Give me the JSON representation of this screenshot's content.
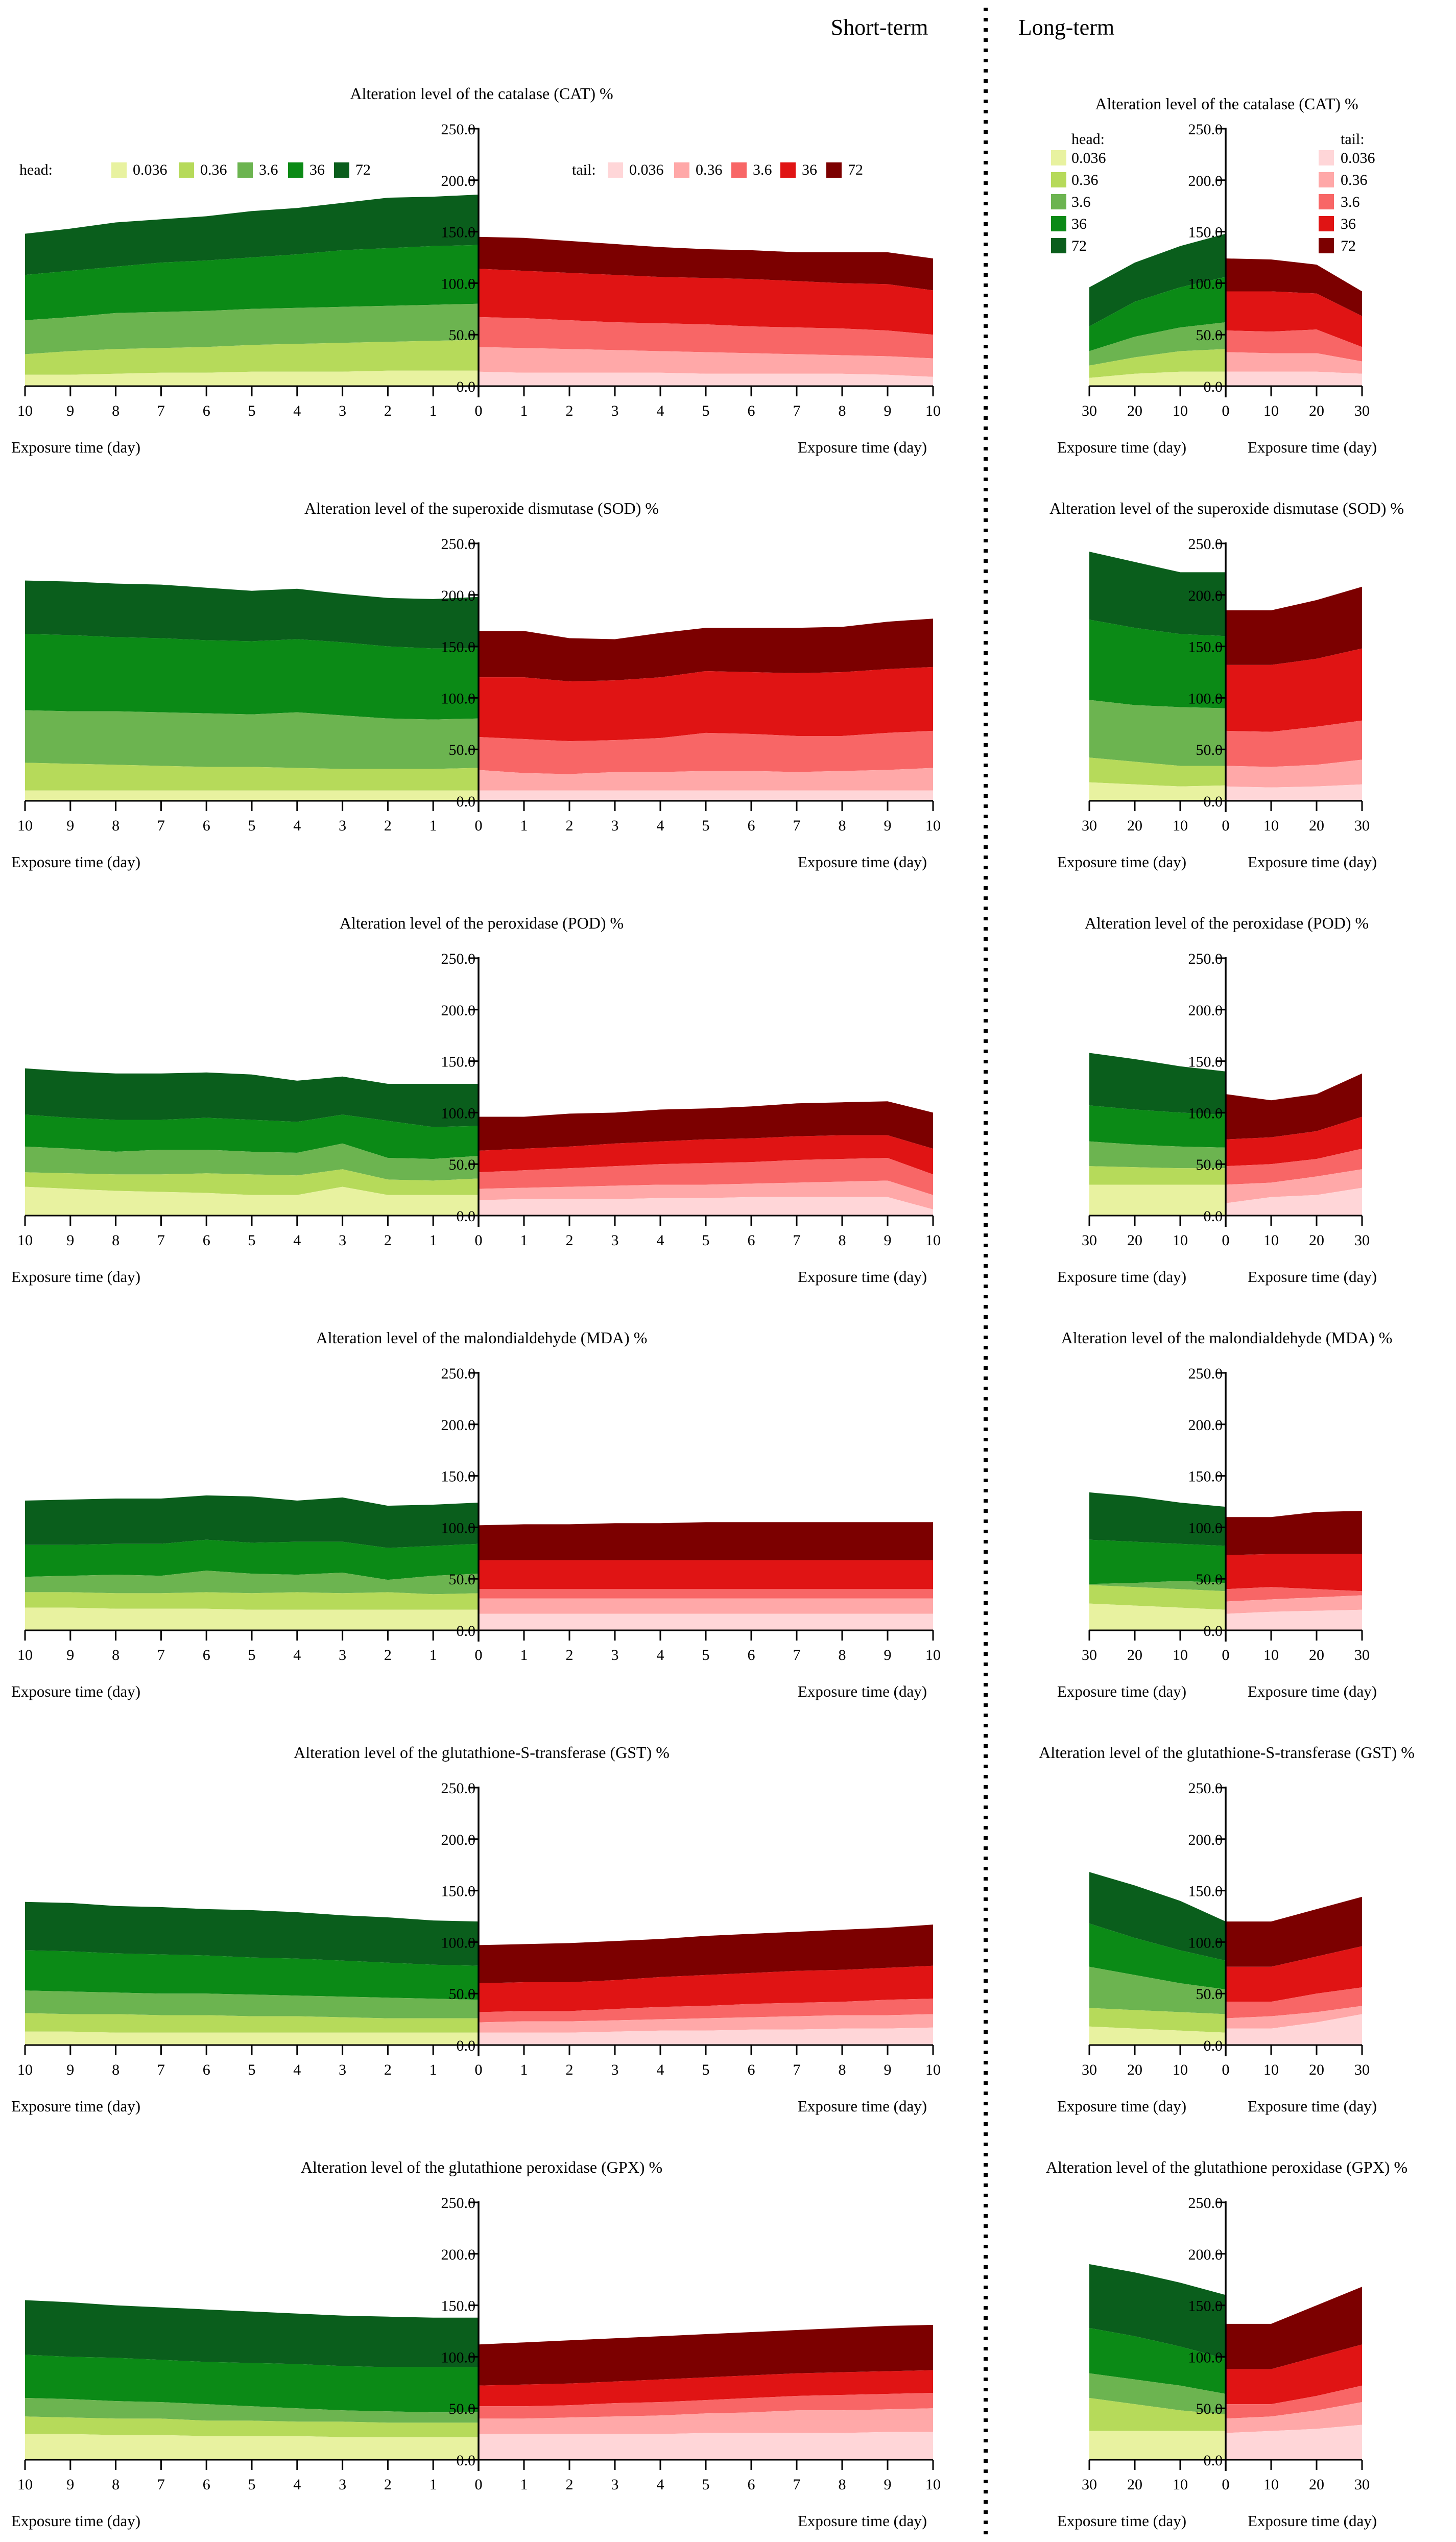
{
  "headings": {
    "short_term": "Short-term",
    "long_term": "Long-term"
  },
  "colors": {
    "head": [
      "#e8f2a0",
      "#b6da5a",
      "#6cb450",
      "#0b8a16",
      "#0a5e1c"
    ],
    "tail": [
      "#ffd6d8",
      "#ffa8a8",
      "#f86666",
      "#e01414",
      "#7c0000"
    ]
  },
  "legend": {
    "head_title": "head:",
    "tail_title": "tail:",
    "levels": [
      "0.036",
      "0.36",
      "3.6",
      "36",
      "72"
    ]
  },
  "common": {
    "y_ticks": [
      "0.0",
      "50.0",
      "100.0",
      "150.0",
      "200.0",
      "250.0"
    ],
    "ylim": [
      0,
      250
    ],
    "xlabel": "Exposure time (day)",
    "short_days": [
      0,
      1,
      2,
      3,
      4,
      5,
      6,
      7,
      8,
      9,
      10
    ],
    "long_days": [
      0,
      10,
      20,
      30
    ]
  },
  "chart_data": [
    {
      "type": "area",
      "title": "Alteration level of the catalase (CAT)  %",
      "short": {
        "head": [
          [
            15,
            15,
            15,
            14,
            14,
            14,
            13,
            13,
            12,
            11,
            11
          ],
          [
            45,
            44,
            43,
            42,
            41,
            40,
            38,
            37,
            36,
            34,
            31
          ],
          [
            80,
            79,
            78,
            77,
            76,
            75,
            73,
            72,
            71,
            67,
            64
          ],
          [
            137,
            136,
            134,
            132,
            128,
            125,
            122,
            120,
            116,
            112,
            108
          ],
          [
            186,
            184,
            183,
            178,
            173,
            170,
            165,
            162,
            159,
            153,
            148
          ]
        ],
        "tail": [
          [
            14,
            13,
            13,
            13,
            13,
            12,
            12,
            12,
            12,
            11,
            9
          ],
          [
            38,
            37,
            36,
            35,
            34,
            33,
            32,
            31,
            30,
            29,
            27
          ],
          [
            67,
            66,
            64,
            62,
            61,
            60,
            58,
            57,
            56,
            54,
            50
          ],
          [
            114,
            112,
            110,
            108,
            106,
            105,
            104,
            102,
            100,
            99,
            93
          ],
          [
            145,
            144,
            141,
            138,
            135,
            133,
            132,
            130,
            130,
            130,
            124
          ]
        ]
      },
      "long": {
        "head": [
          [
            14,
            14,
            12,
            8
          ],
          [
            36,
            34,
            28,
            20
          ],
          [
            62,
            57,
            48,
            34
          ],
          [
            106,
            96,
            82,
            58
          ],
          [
            148,
            136,
            120,
            96
          ]
        ],
        "tail": [
          [
            14,
            14,
            14,
            12
          ],
          [
            33,
            32,
            32,
            24
          ],
          [
            54,
            53,
            55,
            38
          ],
          [
            92,
            92,
            90,
            68
          ],
          [
            124,
            123,
            118,
            92
          ]
        ]
      }
    },
    {
      "type": "area",
      "title": "Alteration level of the superoxide dismutase (SOD)  %",
      "short": {
        "head": [
          [
            10,
            10,
            10,
            10,
            10,
            10,
            10,
            10,
            10,
            10,
            10
          ],
          [
            32,
            31,
            31,
            31,
            32,
            33,
            33,
            34,
            35,
            36,
            37
          ],
          [
            80,
            79,
            80,
            83,
            86,
            84,
            85,
            86,
            87,
            87,
            88
          ],
          [
            148,
            148,
            150,
            154,
            157,
            155,
            156,
            158,
            159,
            161,
            162
          ],
          [
            198,
            196,
            197,
            201,
            206,
            204,
            207,
            210,
            211,
            213,
            214
          ]
        ],
        "tail": [
          [
            10,
            10,
            10,
            10,
            10,
            10,
            10,
            10,
            10,
            10,
            10
          ],
          [
            30,
            27,
            26,
            28,
            28,
            29,
            29,
            28,
            29,
            30,
            32
          ],
          [
            62,
            60,
            58,
            59,
            61,
            66,
            65,
            63,
            63,
            66,
            68
          ],
          [
            120,
            120,
            116,
            117,
            120,
            126,
            125,
            124,
            125,
            128,
            130
          ],
          [
            165,
            165,
            158,
            157,
            163,
            168,
            168,
            168,
            169,
            174,
            177
          ]
        ]
      },
      "long": {
        "head": [
          [
            15,
            14,
            16,
            18
          ],
          [
            34,
            34,
            38,
            42
          ],
          [
            90,
            91,
            93,
            98
          ],
          [
            160,
            162,
            168,
            176
          ],
          [
            222,
            222,
            232,
            242
          ]
        ],
        "tail": [
          [
            14,
            13,
            14,
            16
          ],
          [
            34,
            33,
            35,
            40
          ],
          [
            68,
            67,
            72,
            78
          ],
          [
            132,
            132,
            138,
            148
          ],
          [
            185,
            185,
            195,
            208
          ]
        ]
      }
    },
    {
      "type": "area",
      "title": "Alteration level of the peroxidase (POD)  %",
      "short": {
        "head": [
          [
            20,
            20,
            20,
            28,
            20,
            20,
            22,
            23,
            24,
            26,
            28
          ],
          [
            36,
            34,
            35,
            45,
            39,
            40,
            41,
            40,
            40,
            41,
            42
          ],
          [
            58,
            55,
            56,
            70,
            61,
            62,
            64,
            64,
            62,
            65,
            67
          ],
          [
            87,
            86,
            92,
            98,
            91,
            93,
            95,
            93,
            93,
            95,
            98
          ],
          [
            128,
            128,
            128,
            135,
            131,
            137,
            139,
            138,
            138,
            140,
            143
          ]
        ],
        "tail": [
          [
            15,
            16,
            16,
            16,
            17,
            17,
            18,
            18,
            18,
            18,
            6
          ],
          [
            26,
            27,
            28,
            29,
            30,
            30,
            31,
            32,
            33,
            34,
            20
          ],
          [
            42,
            44,
            46,
            48,
            50,
            51,
            52,
            54,
            55,
            56,
            40
          ],
          [
            63,
            65,
            67,
            70,
            72,
            74,
            75,
            77,
            78,
            78,
            65
          ],
          [
            96,
            96,
            99,
            100,
            103,
            104,
            106,
            109,
            110,
            111,
            100
          ]
        ]
      },
      "long": {
        "head": [
          [
            30,
            30,
            30,
            30
          ],
          [
            46,
            46,
            47,
            48
          ],
          [
            66,
            67,
            69,
            72
          ],
          [
            98,
            100,
            103,
            107
          ],
          [
            140,
            145,
            152,
            158
          ]
        ],
        "tail": [
          [
            12,
            18,
            20,
            27
          ],
          [
            30,
            32,
            38,
            45
          ],
          [
            48,
            50,
            55,
            65
          ],
          [
            74,
            76,
            82,
            96
          ],
          [
            118,
            112,
            118,
            138
          ]
        ]
      }
    },
    {
      "type": "area",
      "title": "Alteration level of the malondialdehyde (MDA)  %",
      "short": {
        "head": [
          [
            20,
            20,
            20,
            20,
            20,
            20,
            21,
            21,
            21,
            22,
            22
          ],
          [
            36,
            35,
            37,
            36,
            37,
            36,
            37,
            36,
            36,
            37,
            37
          ],
          [
            55,
            53,
            49,
            56,
            54,
            55,
            58,
            53,
            54,
            53,
            52
          ],
          [
            84,
            82,
            80,
            86,
            86,
            85,
            88,
            84,
            84,
            83,
            83
          ],
          [
            124,
            122,
            121,
            129,
            126,
            130,
            131,
            128,
            128,
            127,
            126
          ]
        ],
        "tail": [
          [
            16,
            16,
            16,
            16,
            16,
            16,
            16,
            16,
            16,
            16,
            16
          ],
          [
            31,
            31,
            31,
            31,
            31,
            31,
            31,
            31,
            31,
            31,
            31
          ],
          [
            40,
            40,
            40,
            40,
            40,
            40,
            40,
            40,
            40,
            40,
            40
          ],
          [
            68,
            68,
            68,
            68,
            68,
            68,
            68,
            68,
            68,
            68,
            68
          ],
          [
            102,
            103,
            103,
            104,
            104,
            105,
            105,
            105,
            105,
            105,
            105
          ]
        ]
      },
      "long": {
        "head": [
          [
            20,
            22,
            24,
            26
          ],
          [
            38,
            40,
            42,
            44
          ],
          [
            46,
            48,
            46,
            45
          ],
          [
            82,
            84,
            86,
            88
          ],
          [
            120,
            124,
            130,
            134
          ]
        ],
        "tail": [
          [
            16,
            18,
            19,
            20
          ],
          [
            28,
            30,
            32,
            34
          ],
          [
            40,
            42,
            40,
            38
          ],
          [
            73,
            74,
            74,
            74
          ],
          [
            110,
            110,
            115,
            116
          ]
        ]
      }
    },
    {
      "type": "area",
      "title": "Alteration level of the glutathione-S-transferase (GST)  %",
      "short": {
        "head": [
          [
            12,
            12,
            12,
            12,
            12,
            12,
            12,
            12,
            12,
            13,
            13
          ],
          [
            26,
            26,
            26,
            27,
            28,
            28,
            29,
            29,
            30,
            30,
            31
          ],
          [
            44,
            45,
            46,
            47,
            48,
            49,
            50,
            50,
            51,
            52,
            53
          ],
          [
            77,
            78,
            80,
            82,
            84,
            85,
            87,
            88,
            89,
            91,
            92
          ],
          [
            120,
            121,
            124,
            126,
            129,
            131,
            132,
            134,
            135,
            138,
            139
          ]
        ],
        "tail": [
          [
            12,
            12,
            12,
            13,
            14,
            14,
            15,
            15,
            16,
            16,
            17
          ],
          [
            22,
            23,
            23,
            24,
            25,
            26,
            27,
            28,
            29,
            29,
            30
          ],
          [
            32,
            33,
            33,
            35,
            37,
            38,
            40,
            41,
            42,
            44,
            45
          ],
          [
            60,
            61,
            61,
            63,
            66,
            68,
            70,
            72,
            73,
            75,
            77
          ],
          [
            97,
            98,
            99,
            101,
            103,
            106,
            108,
            110,
            112,
            114,
            117
          ]
        ]
      },
      "long": {
        "head": [
          [
            12,
            14,
            16,
            18
          ],
          [
            30,
            32,
            34,
            36
          ],
          [
            54,
            60,
            68,
            76
          ],
          [
            82,
            92,
            104,
            118
          ],
          [
            120,
            140,
            155,
            168
          ]
        ],
        "tail": [
          [
            16,
            16,
            22,
            30
          ],
          [
            26,
            28,
            32,
            38
          ],
          [
            42,
            42,
            50,
            56
          ],
          [
            76,
            76,
            86,
            96
          ],
          [
            120,
            120,
            132,
            144
          ]
        ]
      }
    },
    {
      "type": "area",
      "title": "Alteration level of the glutathione peroxidase (GPX)  %",
      "short": {
        "head": [
          [
            22,
            22,
            22,
            22,
            23,
            23,
            23,
            24,
            24,
            25,
            25
          ],
          [
            36,
            36,
            36,
            37,
            37,
            38,
            38,
            40,
            40,
            41,
            42
          ],
          [
            46,
            46,
            47,
            48,
            50,
            52,
            54,
            56,
            57,
            59,
            60
          ],
          [
            90,
            90,
            90,
            91,
            93,
            94,
            95,
            97,
            99,
            100,
            102
          ],
          [
            138,
            138,
            139,
            140,
            142,
            144,
            146,
            148,
            150,
            153,
            155
          ]
        ],
        "tail": [
          [
            25,
            25,
            25,
            25,
            25,
            26,
            26,
            26,
            26,
            27,
            27
          ],
          [
            40,
            40,
            41,
            42,
            43,
            45,
            46,
            48,
            48,
            49,
            50
          ],
          [
            52,
            52,
            53,
            55,
            56,
            58,
            60,
            62,
            63,
            64,
            65
          ],
          [
            72,
            73,
            74,
            76,
            78,
            80,
            82,
            84,
            85,
            86,
            87
          ],
          [
            112,
            114,
            116,
            118,
            120,
            122,
            124,
            126,
            128,
            130,
            131
          ]
        ]
      },
      "long": {
        "head": [
          [
            28,
            28,
            28,
            28
          ],
          [
            44,
            48,
            54,
            60
          ],
          [
            64,
            72,
            78,
            84
          ],
          [
            98,
            110,
            120,
            128
          ],
          [
            160,
            172,
            182,
            190
          ]
        ],
        "tail": [
          [
            26,
            28,
            30,
            34
          ],
          [
            40,
            42,
            48,
            56
          ],
          [
            54,
            54,
            62,
            72
          ],
          [
            88,
            88,
            100,
            112
          ],
          [
            132,
            132,
            150,
            168
          ]
        ]
      }
    }
  ]
}
